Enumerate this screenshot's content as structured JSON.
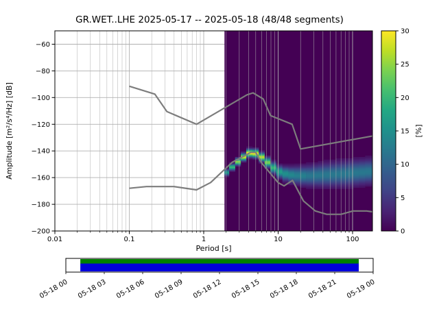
{
  "chart_data": {
    "type": "heatmap",
    "title": "GR.WET..LHE   2025-05-17 -- 2025-05-18  (48/48 segments)",
    "xlabel": "Period [s]",
    "ylabel": "Amplitude [m²/s⁴/Hz] [dB]",
    "xscale": "log",
    "xlim": [
      0.01,
      185
    ],
    "ylim": [
      -200,
      -50
    ],
    "xticks": {
      "values": [
        0.01,
        0.1,
        1,
        10,
        100
      ],
      "labels": [
        "0.01",
        "0.1",
        "1",
        "10",
        "100"
      ]
    },
    "yticks": {
      "values": [
        -60,
        -80,
        -100,
        -120,
        -140,
        -160,
        -180,
        -200
      ],
      "labels": [
        "−60",
        "−80",
        "−100",
        "−120",
        "−140",
        "−160",
        "−180",
        "−200"
      ]
    },
    "grid": true,
    "colormap": "viridis",
    "colors": {
      "background": "#440154",
      "grid": "#b0b0b0",
      "noise_model": "#7d7d7d",
      "coverage_green": "#008000",
      "coverage_blue": "#0000dd"
    },
    "colorbar": {
      "label": "[%]",
      "range": [
        0,
        30
      ],
      "ticks": [
        0,
        5,
        10,
        15,
        20,
        25,
        30
      ]
    },
    "data_period_range": [
      1.9,
      185
    ],
    "noise_models": {
      "high": [
        [
          0.1,
          -91.5
        ],
        [
          0.22,
          -97.4
        ],
        [
          0.32,
          -110.5
        ],
        [
          0.8,
          -120.0
        ],
        [
          3.8,
          -98.0
        ],
        [
          4.6,
          -96.5
        ],
        [
          6.3,
          -101.0
        ],
        [
          7.9,
          -113.5
        ],
        [
          15.4,
          -120.0
        ],
        [
          20.0,
          -138.5
        ],
        [
          185.0,
          -128.8
        ]
      ],
      "low": [
        [
          0.1,
          -168.0
        ],
        [
          0.17,
          -166.7
        ],
        [
          0.4,
          -166.7
        ],
        [
          0.8,
          -169.2
        ],
        [
          1.24,
          -163.7
        ],
        [
          2.4,
          -148.6
        ],
        [
          4.3,
          -141.1
        ],
        [
          5.0,
          -141.1
        ],
        [
          6.0,
          -149.0
        ],
        [
          10.0,
          -163.8
        ],
        [
          12.0,
          -166.2
        ],
        [
          15.6,
          -162.1
        ],
        [
          21.9,
          -177.5
        ],
        [
          31.6,
          -185.0
        ],
        [
          45.0,
          -187.5
        ],
        [
          70.0,
          -187.5
        ],
        [
          101.0,
          -185.0
        ],
        [
          154.0,
          -185.0
        ],
        [
          185.0,
          -185.6
        ]
      ]
    },
    "psd_band": {
      "periods": [
        2.0,
        2.4,
        2.9,
        3.4,
        4.1,
        5.0,
        6.0,
        7.2,
        8.6,
        10.4,
        12.5,
        15.0,
        18.0,
        21.6,
        26.0,
        31.2,
        37.5,
        45.0,
        54.0,
        64.8,
        77.8,
        93.4,
        112.0,
        134.5,
        161.4,
        185.0
      ],
      "center_db": [
        -156,
        -152,
        -148,
        -144.5,
        -141.5,
        -141.8,
        -144.5,
        -148.5,
        -152.5,
        -155.5,
        -157,
        -157.8,
        -158.2,
        -158.4,
        -158.4,
        -158.2,
        -158,
        -157.8,
        -157.5,
        -157.2,
        -157,
        -156.6,
        -156.2,
        -155.8,
        -155.4,
        -155.2
      ],
      "peak_pct": [
        16,
        20,
        25,
        28,
        30,
        29,
        27,
        24,
        20,
        17,
        15,
        14,
        13,
        13,
        12,
        12,
        12,
        12,
        12,
        12,
        12,
        12,
        12,
        12,
        12,
        12
      ],
      "spread_db": [
        1.5,
        1.5,
        1.6,
        1.7,
        1.8,
        1.9,
        2.0,
        2.2,
        2.5,
        2.8,
        3.2,
        3.6,
        4.0,
        4.3,
        4.6,
        4.8,
        5.0,
        5.2,
        5.3,
        5.4,
        5.5,
        5.5,
        5.5,
        5.5,
        5.5,
        5.5
      ]
    },
    "timeline": {
      "tick_labels": [
        "05-18 00",
        "05-18 03",
        "05-18 06",
        "05-18 09",
        "05-18 12",
        "05-18 15",
        "05-18 18",
        "05-18 21",
        "05-19 00"
      ],
      "coverage_frac": [
        0.047,
        0.953
      ]
    }
  }
}
